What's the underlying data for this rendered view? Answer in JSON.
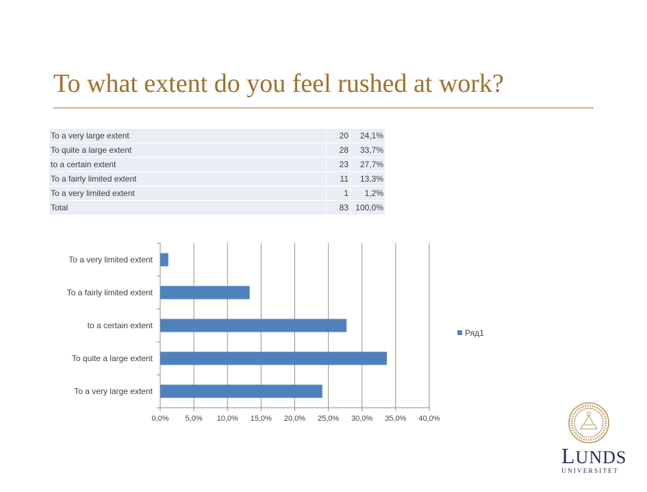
{
  "slide": {
    "title": "To what extent do you feel rushed at work?"
  },
  "table": {
    "rows": [
      {
        "label": "To a very large extent",
        "count": "20",
        "percent": "24,1%"
      },
      {
        "label": "To quite a large extent",
        "count": "28",
        "percent": "33,7%"
      },
      {
        "label": "to a certain extent",
        "count": "23",
        "percent": "27,7%"
      },
      {
        "label": "To a fairly limited extent",
        "count": "11",
        "percent": "13,3%"
      },
      {
        "label": "To a very limited extent",
        "count": "1",
        "percent": "1,2%"
      },
      {
        "label": "Total",
        "count": "83",
        "percent": "100,0%"
      }
    ]
  },
  "chart_data": {
    "type": "bar",
    "orientation": "horizontal",
    "categories": [
      "To a very large extent",
      "To quite a large extent",
      "to a certain extent",
      "To a fairly limited extent",
      "To a very limited extent"
    ],
    "series": [
      {
        "name": "Ряд1",
        "values": [
          24.1,
          33.7,
          27.7,
          13.3,
          1.2
        ],
        "color": "#4f81bd"
      }
    ],
    "xlim": [
      0,
      40
    ],
    "xticks": [
      "0,0%",
      "5,0%",
      "10,0%",
      "15,0%",
      "20,0%",
      "25,0%",
      "30,0%",
      "35,0%",
      "40,0%"
    ],
    "grid": true,
    "legend_position": "right"
  },
  "colors": {
    "title": "#a0702a",
    "bar": "#4f81bd",
    "grid": "#a68a6a",
    "brand": "#1f2f55"
  },
  "logo": {
    "name_cap": "L",
    "name_rest": "UNDS",
    "sub": "UNIVERSITET",
    "icon": "university-seal-icon"
  }
}
